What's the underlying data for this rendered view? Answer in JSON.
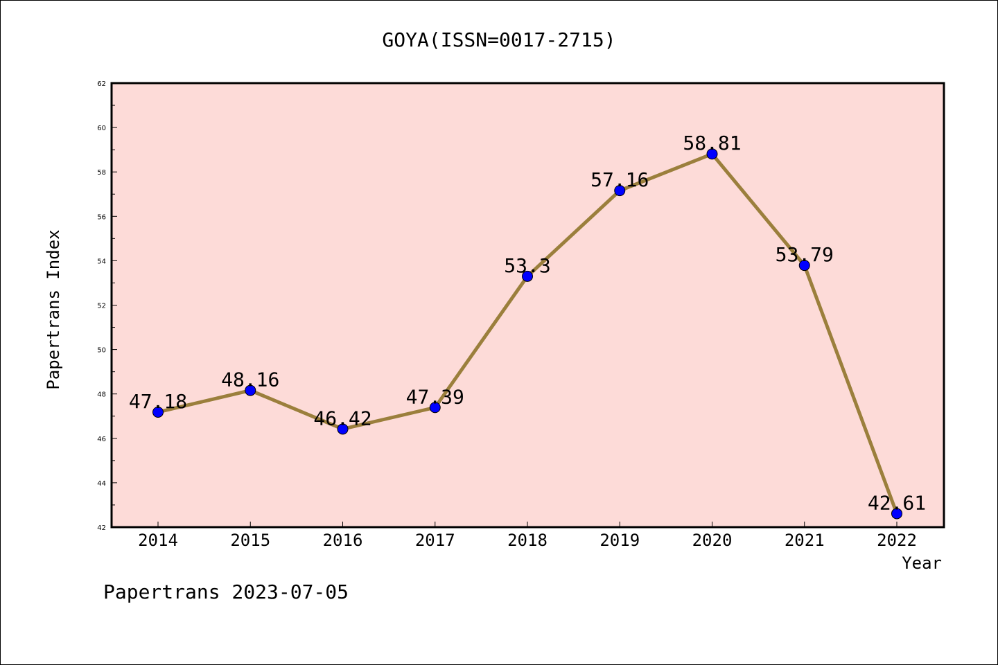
{
  "chart_data": {
    "type": "line",
    "title": "GOYA(ISSN=0017-2715)",
    "xlabel": "Year",
    "ylabel": "Papertrans Index",
    "categories": [
      "2014",
      "2015",
      "2016",
      "2017",
      "2018",
      "2019",
      "2020",
      "2021",
      "2022"
    ],
    "series": [
      {
        "values": [
          47.18,
          48.16,
          46.42,
          47.39,
          53.3,
          57.16,
          58.81,
          53.79,
          42.61
        ],
        "data_labels": [
          "47.18",
          "48.16",
          "46.42",
          "47.39",
          "53.3",
          "57.16",
          "58.81",
          "53.79",
          "42.61"
        ]
      }
    ],
    "ylim": [
      42,
      62
    ],
    "yticks": [
      42,
      44,
      46,
      48,
      50,
      52,
      54,
      56,
      58,
      60,
      62
    ],
    "line_color": "#9b7f3c",
    "marker_color": "#0000ff",
    "plot_background": "#fddbd8",
    "grid": false
  },
  "footer": {
    "text": "Papertrans 2023-07-05"
  }
}
